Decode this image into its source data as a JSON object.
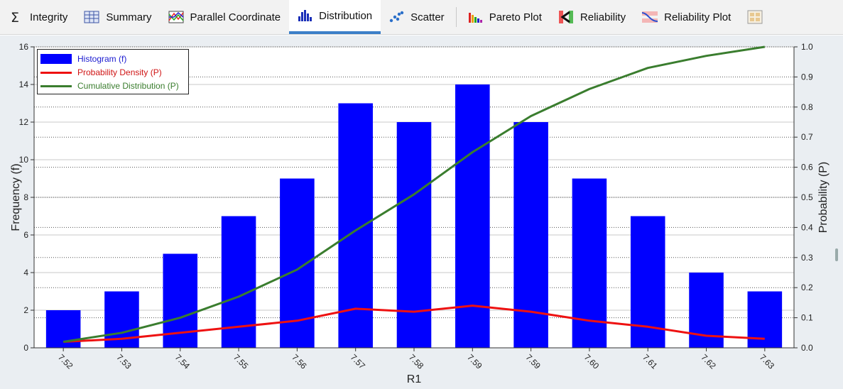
{
  "toolbar": {
    "tabs": [
      {
        "label": "Integrity",
        "icon": "sigma-icon"
      },
      {
        "label": "Summary",
        "icon": "table-icon"
      },
      {
        "label": "Parallel Coordinate",
        "icon": "parallel-coordinate-icon"
      },
      {
        "label": "Distribution",
        "icon": "histogram-icon",
        "active": true
      },
      {
        "label": "Scatter",
        "icon": "scatter-icon"
      },
      {
        "label": "Pareto Plot",
        "icon": "pareto-icon"
      },
      {
        "label": "Reliability",
        "icon": "reliability-icon"
      },
      {
        "label": "Reliability Plot",
        "icon": "reliability-plot-icon"
      }
    ],
    "accent": "#3c7fc8"
  },
  "chart_data": {
    "type": "bar",
    "xlabel": "R1",
    "ylabel": "Frequency (f)",
    "y2label": "Probability (P)",
    "categories": [
      "7.52",
      "7.53",
      "7.54",
      "7.55",
      "7.56",
      "7.57",
      "7.58",
      "7.59",
      "7.59",
      "7.60",
      "7.61",
      "7.62",
      "7.63"
    ],
    "ylim": [
      0,
      16
    ],
    "yticks": [
      "0",
      "2",
      "4",
      "6",
      "8",
      "10",
      "12",
      "14",
      "16"
    ],
    "y2lim": [
      0,
      1.0
    ],
    "y2ticks": [
      "0.0",
      "0.1",
      "0.2",
      "0.3",
      "0.4",
      "0.5",
      "0.6",
      "0.7",
      "0.8",
      "0.9",
      "1.0"
    ],
    "grid": true,
    "legend_position": "top-left",
    "series": [
      {
        "name": "Histogram (f)",
        "kind": "bar",
        "axis": "left",
        "color": "#0000ff",
        "values": [
          2,
          3,
          5,
          7,
          9,
          13,
          12,
          14,
          12,
          9,
          7,
          4,
          3
        ]
      },
      {
        "name": "Probability Density (P)",
        "kind": "line",
        "axis": "right",
        "color": "#ee1111",
        "values": [
          0.02,
          0.03,
          0.05,
          0.07,
          0.09,
          0.13,
          0.12,
          0.14,
          0.12,
          0.09,
          0.07,
          0.04,
          0.03
        ]
      },
      {
        "name": "Cumulative Distribution (P)",
        "kind": "line",
        "axis": "right",
        "color": "#3a7d2e",
        "values": [
          0.02,
          0.05,
          0.1,
          0.17,
          0.26,
          0.39,
          0.51,
          0.65,
          0.77,
          0.86,
          0.93,
          0.97,
          1.0
        ]
      }
    ]
  }
}
